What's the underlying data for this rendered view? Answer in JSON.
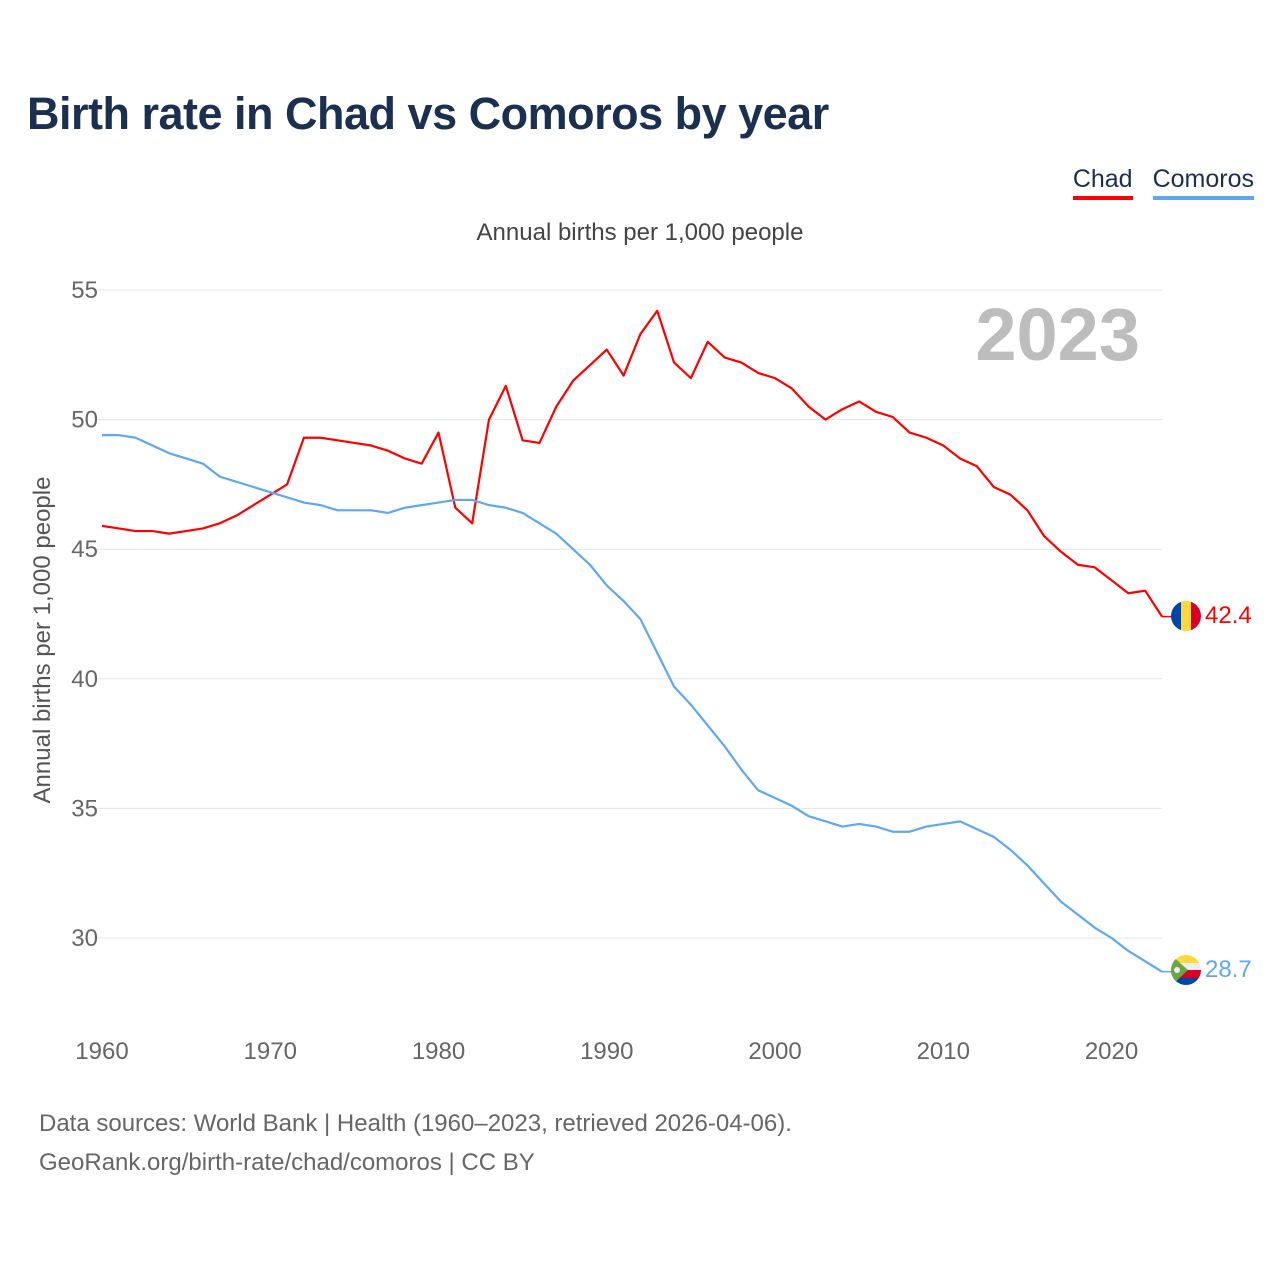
{
  "title": "Birth rate in Chad vs Comoros by year",
  "footer": {
    "line1": "Data sources: World Bank | Health (1960–2023, retrieved 2026-04-06).",
    "line2": "GeoRank.org/birth-rate/chad/comoros | CC BY"
  },
  "chart_data": {
    "type": "line",
    "title": "Birth rate in Chad vs Comoros by year",
    "subtitle": "Annual births per 1,000 people",
    "xlabel": "",
    "ylabel": "Annual births per 1,000 people",
    "year_label": "2023",
    "xlim": [
      1960,
      2023
    ],
    "ylim": [
      27.5,
      55
    ],
    "x_ticks": [
      "1960",
      "1970",
      "1980",
      "1990",
      "2000",
      "2010",
      "2020"
    ],
    "y_ticks": [
      "30",
      "35",
      "40",
      "45",
      "50",
      "55"
    ],
    "grid": true,
    "legend_position": "top-right",
    "x": [
      1960,
      1961,
      1962,
      1963,
      1964,
      1965,
      1966,
      1967,
      1968,
      1969,
      1970,
      1971,
      1972,
      1973,
      1974,
      1975,
      1976,
      1977,
      1978,
      1979,
      1980,
      1981,
      1982,
      1983,
      1984,
      1985,
      1986,
      1987,
      1988,
      1989,
      1990,
      1991,
      1992,
      1993,
      1994,
      1995,
      1996,
      1997,
      1998,
      1999,
      2000,
      2001,
      2002,
      2003,
      2004,
      2005,
      2006,
      2007,
      2008,
      2009,
      2010,
      2011,
      2012,
      2013,
      2014,
      2015,
      2016,
      2017,
      2018,
      2019,
      2020,
      2021,
      2022,
      2023
    ],
    "series": [
      {
        "name": "Chad",
        "color": "#ff0000",
        "end_label": "42.4",
        "values": [
          45.9,
          45.8,
          45.7,
          45.7,
          45.6,
          45.7,
          45.8,
          46.0,
          46.3,
          46.7,
          47.1,
          47.5,
          49.3,
          49.3,
          49.2,
          49.1,
          49.0,
          48.8,
          48.5,
          48.3,
          49.5,
          46.6,
          46.0,
          50.0,
          51.3,
          49.2,
          49.1,
          50.5,
          51.5,
          52.1,
          52.7,
          51.7,
          53.3,
          54.2,
          52.2,
          51.6,
          53.0,
          52.4,
          52.2,
          51.8,
          51.6,
          51.2,
          50.5,
          50.0,
          50.4,
          50.7,
          50.3,
          50.1,
          49.5,
          49.3,
          49.0,
          48.5,
          48.2,
          47.4,
          47.1,
          46.5,
          45.5,
          44.9,
          44.4,
          44.3,
          43.8,
          43.3,
          43.4,
          42.4
        ]
      },
      {
        "name": "Comoros",
        "color": "#5fa8f0",
        "end_label": "28.7",
        "values": [
          49.4,
          49.4,
          49.3,
          49.0,
          48.7,
          48.5,
          48.3,
          47.8,
          47.6,
          47.4,
          47.2,
          47.0,
          46.8,
          46.7,
          46.5,
          46.5,
          46.5,
          46.4,
          46.6,
          46.7,
          46.8,
          46.9,
          46.9,
          46.7,
          46.6,
          46.4,
          46.0,
          45.6,
          45.0,
          44.4,
          43.6,
          43.0,
          42.3,
          41.0,
          39.7,
          39.0,
          38.2,
          37.4,
          36.5,
          35.7,
          35.4,
          35.1,
          34.7,
          34.5,
          34.3,
          34.4,
          34.3,
          34.1,
          34.1,
          34.3,
          34.4,
          34.5,
          34.2,
          33.9,
          33.4,
          32.8,
          32.1,
          31.4,
          30.9,
          30.4,
          30.0,
          29.5,
          29.1,
          28.7
        ]
      }
    ]
  }
}
